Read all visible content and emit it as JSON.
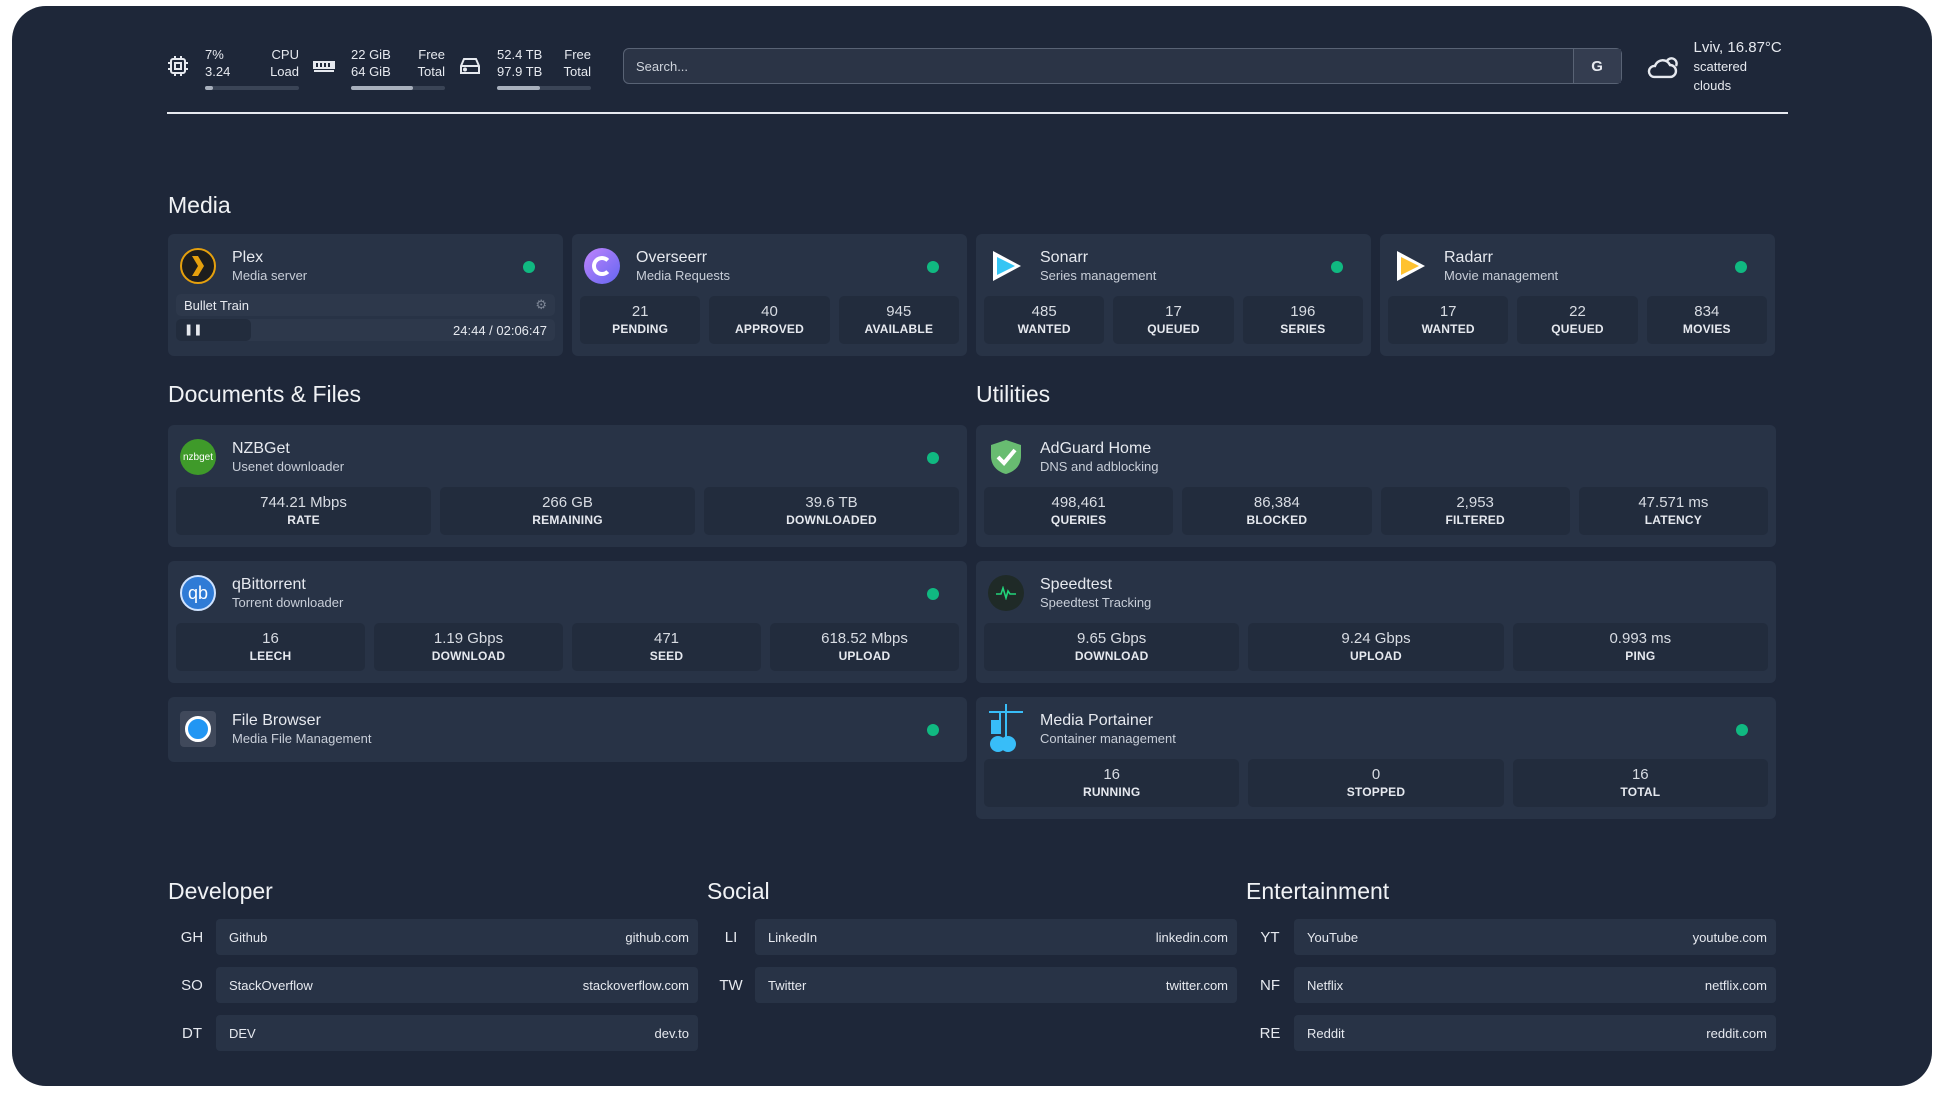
{
  "header": {
    "cpu": {
      "icon": "cpu-icon",
      "usage": "7%",
      "load": "3.24",
      "label1": "CPU",
      "label2": "Load",
      "percent": 7
    },
    "memory": {
      "icon": "memory-icon",
      "free": "22 GiB",
      "total": "64 GiB",
      "label1": "Free",
      "label2": "Total",
      "percent": 66
    },
    "disk": {
      "icon": "disk-icon",
      "free": "52.4 TB",
      "total": "97.9 TB",
      "label1": "Free",
      "label2": "Total",
      "percent": 46
    },
    "search": {
      "placeholder": "Search...",
      "button": "G"
    },
    "weather": {
      "icon": "cloud-sun-icon",
      "location": "Lviv, 16.87°C",
      "condition": "scattered clouds"
    }
  },
  "sections": {
    "media": "Media",
    "docs": "Documents & Files",
    "utilities": "Utilities",
    "developer": "Developer",
    "social": "Social",
    "entertainment": "Entertainment"
  },
  "plex": {
    "name": "Plex",
    "desc": "Media server",
    "now_playing": "Bullet Train",
    "time": "24:44 / 02:06:47",
    "status": "online"
  },
  "media": [
    {
      "name": "Overseerr",
      "desc": "Media Requests",
      "icon": "overseerr-icon",
      "stats": [
        {
          "v": "21",
          "k": "PENDING"
        },
        {
          "v": "40",
          "k": "APPROVED"
        },
        {
          "v": "945",
          "k": "AVAILABLE"
        }
      ]
    },
    {
      "name": "Sonarr",
      "desc": "Series management",
      "icon": "sonarr-icon",
      "stats": [
        {
          "v": "485",
          "k": "WANTED"
        },
        {
          "v": "17",
          "k": "QUEUED"
        },
        {
          "v": "196",
          "k": "SERIES"
        }
      ]
    },
    {
      "name": "Radarr",
      "desc": "Movie management",
      "icon": "radarr-icon",
      "stats": [
        {
          "v": "17",
          "k": "WANTED"
        },
        {
          "v": "22",
          "k": "QUEUED"
        },
        {
          "v": "834",
          "k": "MOVIES"
        }
      ]
    }
  ],
  "docs": [
    {
      "name": "NZBGet",
      "desc": "Usenet downloader",
      "icon": "nzbget-icon",
      "stats": [
        {
          "v": "744.21 Mbps",
          "k": "RATE"
        },
        {
          "v": "266 GB",
          "k": "REMAINING"
        },
        {
          "v": "39.6 TB",
          "k": "DOWNLOADED"
        }
      ]
    },
    {
      "name": "qBittorrent",
      "desc": "Torrent downloader",
      "icon": "qbittorrent-icon",
      "stats": [
        {
          "v": "16",
          "k": "LEECH"
        },
        {
          "v": "1.19 Gbps",
          "k": "DOWNLOAD"
        },
        {
          "v": "471",
          "k": "SEED"
        },
        {
          "v": "618.52 Mbps",
          "k": "UPLOAD"
        }
      ]
    },
    {
      "name": "File Browser",
      "desc": "Media File Management",
      "icon": "file-browser-icon",
      "stats": []
    }
  ],
  "utilities": [
    {
      "name": "AdGuard Home",
      "desc": "DNS and adblocking",
      "icon": "adguard-shield-icon",
      "nodot": true,
      "stats": [
        {
          "v": "498,461",
          "k": "QUERIES"
        },
        {
          "v": "86,384",
          "k": "BLOCKED"
        },
        {
          "v": "2,953",
          "k": "FILTERED"
        },
        {
          "v": "47.571 ms",
          "k": "LATENCY"
        }
      ]
    },
    {
      "name": "Speedtest",
      "desc": "Speedtest Tracking",
      "icon": "speedtest-pulse-icon",
      "nodot": true,
      "stats": [
        {
          "v": "9.65 Gbps",
          "k": "DOWNLOAD"
        },
        {
          "v": "9.24 Gbps",
          "k": "UPLOAD"
        },
        {
          "v": "0.993 ms",
          "k": "PING"
        }
      ]
    },
    {
      "name": "Media Portainer",
      "desc": "Container management",
      "icon": "portainer-icon",
      "stats": [
        {
          "v": "16",
          "k": "RUNNING"
        },
        {
          "v": "0",
          "k": "STOPPED"
        },
        {
          "v": "16",
          "k": "TOTAL"
        }
      ]
    }
  ],
  "bookmarks": {
    "developer": [
      {
        "abbr": "GH",
        "name": "Github",
        "url": "github.com"
      },
      {
        "abbr": "SO",
        "name": "StackOverflow",
        "url": "stackoverflow.com"
      },
      {
        "abbr": "DT",
        "name": "DEV",
        "url": "dev.to"
      }
    ],
    "social": [
      {
        "abbr": "LI",
        "name": "LinkedIn",
        "url": "linkedin.com"
      },
      {
        "abbr": "TW",
        "name": "Twitter",
        "url": "twitter.com"
      }
    ],
    "entertainment": [
      {
        "abbr": "YT",
        "name": "YouTube",
        "url": "youtube.com"
      },
      {
        "abbr": "NF",
        "name": "Netflix",
        "url": "netflix.com"
      },
      {
        "abbr": "RE",
        "name": "Reddit",
        "url": "reddit.com"
      }
    ]
  },
  "colors": {
    "background": "#1e2739",
    "card": "#283346",
    "status_online": "#10b981"
  }
}
